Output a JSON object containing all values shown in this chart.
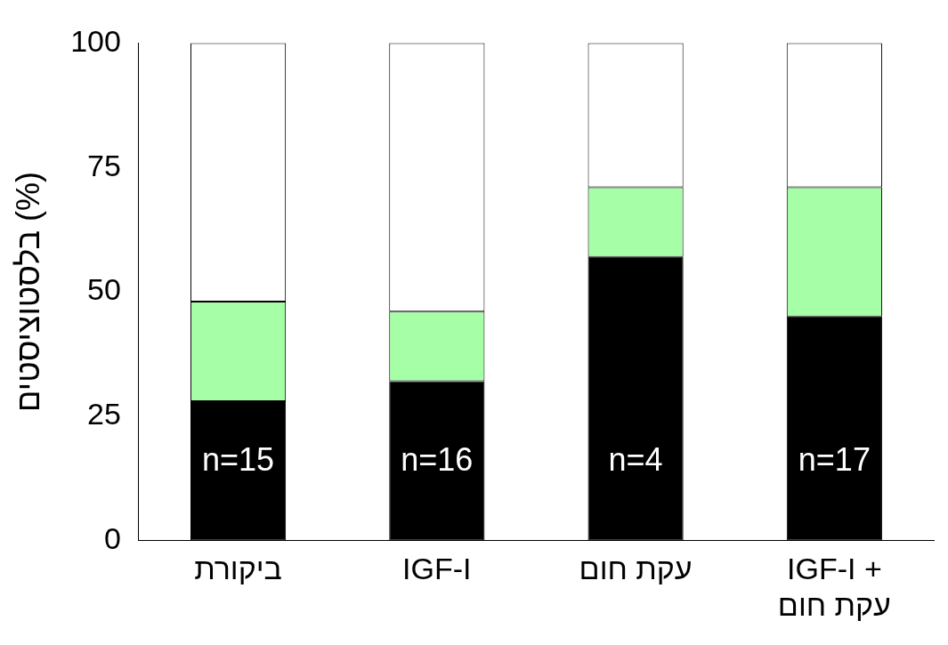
{
  "chart_data": {
    "type": "bar",
    "stacked": true,
    "ylabel": "בלסטוציסטים (%)",
    "categories": [
      "ביקורת",
      "IGF-I",
      "עקת חום",
      "IGF-I + עקת חום"
    ],
    "series": [
      {
        "color": "#000000",
        "values": [
          28,
          32,
          57,
          45
        ]
      },
      {
        "color": "#a6ffa6",
        "values": [
          20,
          14,
          14,
          26
        ]
      },
      {
        "color": "#ffffff",
        "values": [
          52,
          54,
          29,
          29
        ]
      }
    ],
    "ylim": [
      0,
      100
    ],
    "yticks": [
      0,
      25,
      50,
      75,
      100
    ],
    "grid": false,
    "legend": false,
    "annotations": [
      "n=15",
      "n=16",
      "n=4",
      "n=17"
    ]
  }
}
